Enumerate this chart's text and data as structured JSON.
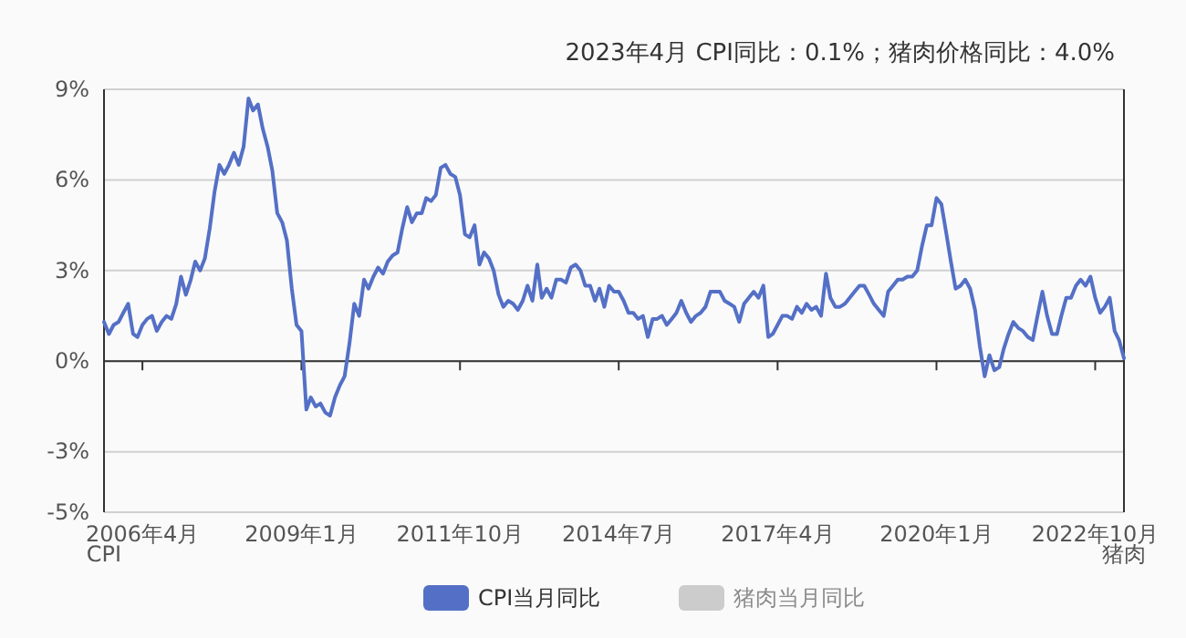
{
  "chart_data": {
    "type": "line",
    "title": "2023年4月 CPI同比：0.1%；猪肉价格同比：4.0%",
    "ylabel": "CPI",
    "y2label": "猪肉",
    "x": [
      "2005-08",
      "2005-09",
      "2005-10",
      "2005-11",
      "2005-12",
      "2006-01",
      "2006-02",
      "2006-03",
      "2006-04",
      "2006-05",
      "2006-06",
      "2006-07",
      "2006-08",
      "2006-09",
      "2006-10",
      "2006-11",
      "2006-12",
      "2007-01",
      "2007-02",
      "2007-03",
      "2007-04",
      "2007-05",
      "2007-06",
      "2007-07",
      "2007-08",
      "2007-09",
      "2007-10",
      "2007-11",
      "2007-12",
      "2008-01",
      "2008-02",
      "2008-03",
      "2008-04",
      "2008-05",
      "2008-06",
      "2008-07",
      "2008-08",
      "2008-09",
      "2008-10",
      "2008-11",
      "2008-12",
      "2009-01",
      "2009-02",
      "2009-03",
      "2009-04",
      "2009-05",
      "2009-06",
      "2009-07",
      "2009-08",
      "2009-09",
      "2009-10",
      "2009-11",
      "2009-12",
      "2010-01",
      "2010-02",
      "2010-03",
      "2010-04",
      "2010-05",
      "2010-06",
      "2010-07",
      "2010-08",
      "2010-09",
      "2010-10",
      "2010-11",
      "2010-12",
      "2011-01",
      "2011-02",
      "2011-03",
      "2011-04",
      "2011-05",
      "2011-06",
      "2011-07",
      "2011-08",
      "2011-09",
      "2011-10",
      "2011-11",
      "2011-12",
      "2012-01",
      "2012-02",
      "2012-03",
      "2012-04",
      "2012-05",
      "2012-06",
      "2012-07",
      "2012-08",
      "2012-09",
      "2012-10",
      "2012-11",
      "2012-12",
      "2013-01",
      "2013-02",
      "2013-03",
      "2013-04",
      "2013-05",
      "2013-06",
      "2013-07",
      "2013-08",
      "2013-09",
      "2013-10",
      "2013-11",
      "2013-12",
      "2014-01",
      "2014-02",
      "2014-03",
      "2014-04",
      "2014-05",
      "2014-06",
      "2014-07",
      "2014-08",
      "2014-09",
      "2014-10",
      "2014-11",
      "2014-12",
      "2015-01",
      "2015-02",
      "2015-03",
      "2015-04",
      "2015-05",
      "2015-06",
      "2015-07",
      "2015-08",
      "2015-09",
      "2015-10",
      "2015-11",
      "2015-12",
      "2016-01",
      "2016-02",
      "2016-03",
      "2016-04",
      "2016-05",
      "2016-06",
      "2016-07",
      "2016-08",
      "2016-09",
      "2016-10",
      "2016-11",
      "2016-12",
      "2017-01",
      "2017-02",
      "2017-03",
      "2017-04",
      "2017-05",
      "2017-06",
      "2017-07",
      "2017-08",
      "2017-09",
      "2017-10",
      "2017-11",
      "2017-12",
      "2018-01",
      "2018-02",
      "2018-03",
      "2018-04",
      "2018-05",
      "2018-06",
      "2018-07",
      "2018-08",
      "2018-09",
      "2018-10",
      "2018-11",
      "2018-12",
      "2019-01",
      "2019-02",
      "2019-03",
      "2019-04",
      "2019-05",
      "2019-06",
      "2019-07",
      "2019-08",
      "2019-09",
      "2019-10",
      "2019-11",
      "2019-12",
      "2020-01",
      "2020-02",
      "2020-03",
      "2020-04",
      "2020-05",
      "2020-06",
      "2020-07",
      "2020-08",
      "2020-09",
      "2020-10",
      "2020-11",
      "2020-12",
      "2021-01",
      "2021-02",
      "2021-03",
      "2021-04",
      "2021-05",
      "2021-06",
      "2021-07",
      "2021-08",
      "2021-09",
      "2021-10",
      "2021-11",
      "2021-12",
      "2022-01",
      "2022-02",
      "2022-03",
      "2022-04",
      "2022-05",
      "2022-06",
      "2022-07",
      "2022-08",
      "2022-09",
      "2022-10",
      "2022-11",
      "2022-12",
      "2023-01",
      "2023-02",
      "2023-03",
      "2023-04"
    ],
    "series": [
      {
        "name": "CPI当月同比",
        "color": "#5470c6",
        "values": [
          1.3,
          0.9,
          1.2,
          1.3,
          1.6,
          1.9,
          0.9,
          0.8,
          1.2,
          1.4,
          1.5,
          1.0,
          1.3,
          1.5,
          1.4,
          1.9,
          2.8,
          2.2,
          2.7,
          3.3,
          3.0,
          3.4,
          4.4,
          5.6,
          6.5,
          6.2,
          6.5,
          6.9,
          6.5,
          7.1,
          8.7,
          8.3,
          8.5,
          7.7,
          7.1,
          6.3,
          4.9,
          4.6,
          4.0,
          2.4,
          1.2,
          1.0,
          -1.6,
          -1.2,
          -1.5,
          -1.4,
          -1.7,
          -1.8,
          -1.2,
          -0.8,
          -0.5,
          0.6,
          1.9,
          1.5,
          2.7,
          2.4,
          2.8,
          3.1,
          2.9,
          3.3,
          3.5,
          3.6,
          4.4,
          5.1,
          4.6,
          4.9,
          4.9,
          5.4,
          5.3,
          5.5,
          6.4,
          6.5,
          6.2,
          6.1,
          5.5,
          4.2,
          4.1,
          4.5,
          3.2,
          3.6,
          3.4,
          3.0,
          2.2,
          1.8,
          2.0,
          1.9,
          1.7,
          2.0,
          2.5,
          2.0,
          3.2,
          2.1,
          2.4,
          2.1,
          2.7,
          2.7,
          2.6,
          3.1,
          3.2,
          3.0,
          2.5,
          2.5,
          2.0,
          2.4,
          1.8,
          2.5,
          2.3,
          2.3,
          2.0,
          1.6,
          1.6,
          1.4,
          1.5,
          0.8,
          1.4,
          1.4,
          1.5,
          1.2,
          1.4,
          1.6,
          2.0,
          1.6,
          1.3,
          1.5,
          1.6,
          1.8,
          2.3,
          2.3,
          2.3,
          2.0,
          1.9,
          1.8,
          1.3,
          1.9,
          2.1,
          2.3,
          2.1,
          2.5,
          0.8,
          0.9,
          1.2,
          1.5,
          1.5,
          1.4,
          1.8,
          1.6,
          1.9,
          1.7,
          1.8,
          1.5,
          2.9,
          2.1,
          1.8,
          1.8,
          1.9,
          2.1,
          2.3,
          2.5,
          2.5,
          2.2,
          1.9,
          1.7,
          1.5,
          2.3,
          2.5,
          2.7,
          2.7,
          2.8,
          2.8,
          3.0,
          3.8,
          4.5,
          4.5,
          5.4,
          5.2,
          4.3,
          3.3,
          2.4,
          2.5,
          2.7,
          2.4,
          1.7,
          0.5,
          -0.5,
          0.2,
          -0.3,
          -0.2,
          0.4,
          0.9,
          1.3,
          1.1,
          1.0,
          0.8,
          0.7,
          1.5,
          2.3,
          1.5,
          0.9,
          0.9,
          1.5,
          2.1,
          2.1,
          2.5,
          2.7,
          2.5,
          2.8,
          2.1,
          1.6,
          1.8,
          2.1,
          1.0,
          0.7,
          0.1
        ]
      },
      {
        "name": "猪肉当月同比",
        "color": "#cccccc",
        "values": [
          null,
          null,
          null,
          null,
          null,
          null,
          null,
          null,
          null,
          null,
          null,
          null,
          null,
          null,
          null,
          null,
          null,
          null,
          null,
          null,
          null,
          null,
          null,
          null,
          null,
          null,
          null,
          null,
          null,
          null,
          null,
          null,
          null,
          null,
          null,
          null,
          null,
          null,
          null,
          null,
          null,
          null,
          null,
          null,
          null,
          null,
          null,
          null,
          null,
          null,
          null,
          null,
          null,
          null,
          null,
          null,
          null,
          null,
          null,
          null,
          null,
          null,
          null,
          null,
          null,
          null,
          null,
          null,
          null,
          null,
          null,
          null,
          null,
          null,
          null,
          null,
          null,
          null,
          null,
          null,
          null,
          null,
          null,
          null,
          null,
          null,
          null,
          null,
          null,
          null,
          null,
          null,
          null,
          null,
          null,
          null,
          null,
          null,
          null,
          null,
          null,
          null,
          null,
          null,
          null,
          null,
          null,
          null,
          null,
          null,
          null,
          null,
          null,
          null,
          null,
          null,
          null,
          null,
          null,
          null,
          null,
          null,
          null,
          null,
          null,
          null,
          null,
          null,
          null,
          null,
          null,
          null,
          null,
          null,
          null,
          null,
          null,
          null,
          null,
          null,
          null,
          null,
          null,
          null,
          null,
          null,
          null,
          null,
          null,
          null,
          null,
          null,
          null,
          null,
          null,
          null,
          null,
          null,
          null,
          null,
          null,
          null,
          null,
          null,
          null,
          null,
          null,
          null,
          null,
          null,
          null,
          null,
          null,
          null,
          null,
          null,
          null,
          null,
          null,
          null,
          null,
          null,
          null,
          null,
          null,
          null,
          null,
          null,
          null,
          null,
          null,
          null,
          null,
          null,
          null,
          null,
          null,
          null,
          null,
          null,
          null,
          null,
          null,
          null,
          null,
          null,
          null,
          null,
          null,
          null,
          null,
          null,
          null
        ]
      }
    ],
    "xlim": [
      "2005-08",
      "2023-04"
    ],
    "xticks": [
      {
        "value": "2006-04",
        "label": "2006年4月"
      },
      {
        "value": "2009-01",
        "label": "2009年1月"
      },
      {
        "value": "2011-10",
        "label": "2011年10月"
      },
      {
        "value": "2014-07",
        "label": "2014年7月"
      },
      {
        "value": "2017-04",
        "label": "2017年4月"
      },
      {
        "value": "2020-01",
        "label": "2020年1月"
      },
      {
        "value": "2022-10",
        "label": "2022年10月"
      }
    ],
    "ylim": [
      -5,
      9
    ],
    "yticks": [
      {
        "value": -5,
        "label": "-5%"
      },
      {
        "value": -3,
        "label": "-3%"
      },
      {
        "value": 0,
        "label": "0%"
      },
      {
        "value": 3,
        "label": "3%"
      },
      {
        "value": 6,
        "label": "6%"
      },
      {
        "value": 9,
        "label": "9%"
      }
    ],
    "grid": "y",
    "legend": "bottom",
    "line_style": "solid"
  }
}
